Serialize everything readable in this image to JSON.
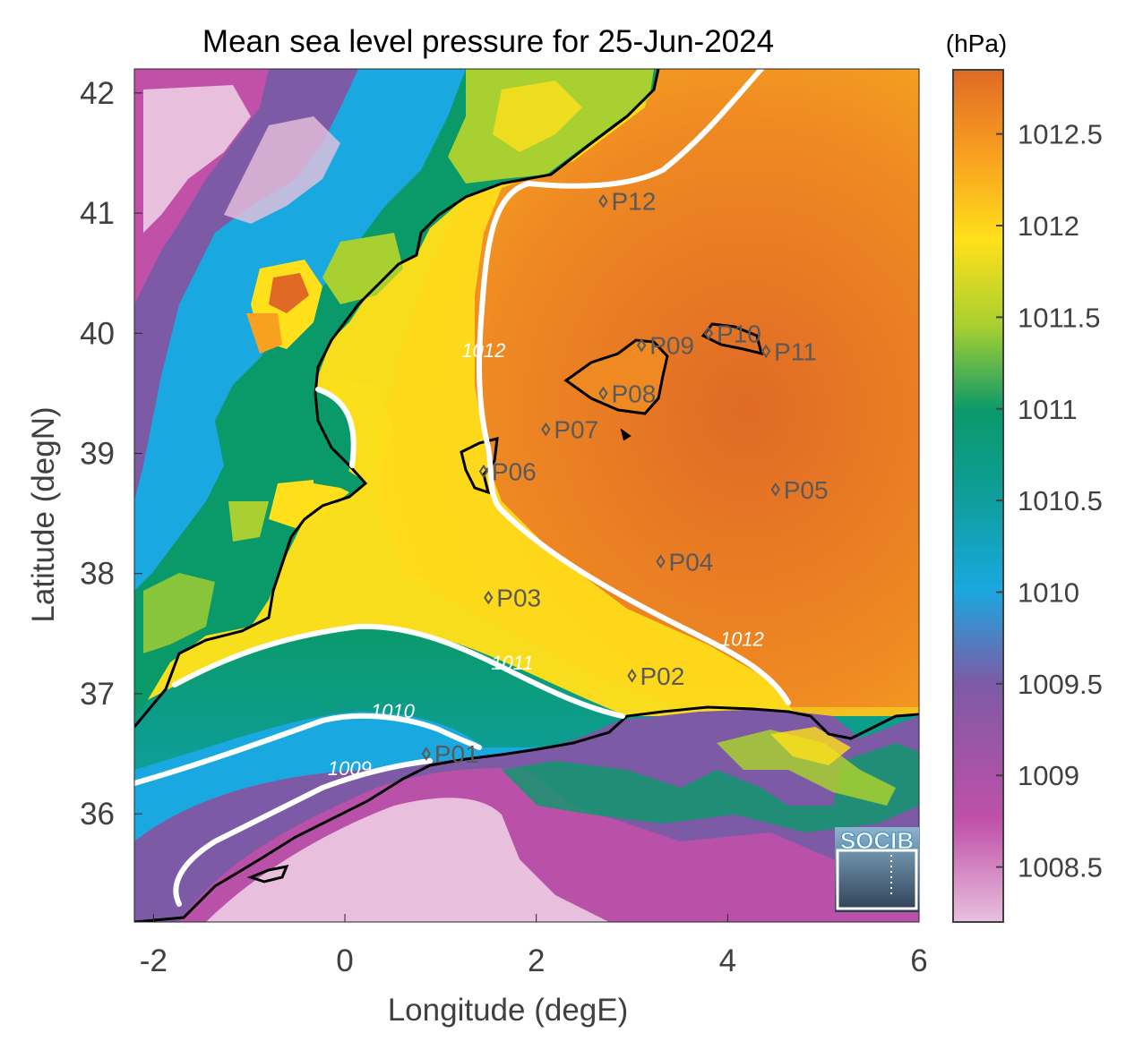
{
  "title": "Mean sea level pressure for 25-Jun-2024",
  "x_axis": {
    "label": "Longitude (degE)",
    "range": [
      -2.2,
      6.0
    ],
    "ticks": [
      {
        "value": -2,
        "label": "-2"
      },
      {
        "value": 0,
        "label": "0"
      },
      {
        "value": 2,
        "label": "2"
      },
      {
        "value": 4,
        "label": "4"
      },
      {
        "value": 6,
        "label": "6"
      }
    ]
  },
  "y_axis": {
    "label": "Latitude (degN)",
    "range": [
      35.1,
      42.2
    ],
    "ticks": [
      {
        "value": 36,
        "label": "36"
      },
      {
        "value": 37,
        "label": "37"
      },
      {
        "value": 38,
        "label": "38"
      },
      {
        "value": 39,
        "label": "39"
      },
      {
        "value": 40,
        "label": "40"
      },
      {
        "value": 41,
        "label": "41"
      },
      {
        "value": 42,
        "label": "42"
      }
    ]
  },
  "colorbar": {
    "unit": "(hPa)",
    "range": [
      1008.2,
      1012.85
    ],
    "ticks": [
      {
        "value": 1008.5,
        "label": "1008.5"
      },
      {
        "value": 1009,
        "label": "1009"
      },
      {
        "value": 1009.5,
        "label": "1009.5"
      },
      {
        "value": 1010,
        "label": "1010"
      },
      {
        "value": 1010.5,
        "label": "1010.5"
      },
      {
        "value": 1011,
        "label": "1011"
      },
      {
        "value": 1011.5,
        "label": "1011.5"
      },
      {
        "value": 1012,
        "label": "1012"
      },
      {
        "value": 1012.5,
        "label": "1012.5"
      }
    ],
    "colors": [
      "#e8c0dd",
      "#c050a8",
      "#7d5aa6",
      "#1aa8e0",
      "#0e9e9a",
      "#0a9a6a",
      "#a8d030",
      "#ffe01a",
      "#f8a020",
      "#e06a25"
    ]
  },
  "contour_labels": [
    {
      "value": "1012",
      "lon": 1.45,
      "lat": 39.8
    },
    {
      "value": "1012",
      "lon": 4.15,
      "lat": 37.4
    },
    {
      "value": "1011",
      "lon": 1.75,
      "lat": 37.2
    },
    {
      "value": "1010",
      "lon": 0.5,
      "lat": 36.8
    },
    {
      "value": "1009",
      "lon": 0.05,
      "lat": 36.32
    }
  ],
  "stations": [
    {
      "label": "P01",
      "lon": 0.85,
      "lat": 36.5
    },
    {
      "label": "P02",
      "lon": 3.0,
      "lat": 37.15
    },
    {
      "label": "P03",
      "lon": 1.5,
      "lat": 37.8
    },
    {
      "label": "P04",
      "lon": 3.3,
      "lat": 38.1
    },
    {
      "label": "P05",
      "lon": 4.5,
      "lat": 38.7
    },
    {
      "label": "P06",
      "lon": 1.45,
      "lat": 38.85
    },
    {
      "label": "P07",
      "lon": 2.1,
      "lat": 39.2
    },
    {
      "label": "P08",
      "lon": 2.7,
      "lat": 39.5
    },
    {
      "label": "P09",
      "lon": 3.1,
      "lat": 39.9
    },
    {
      "label": "P10",
      "lon": 3.8,
      "lat": 40.0
    },
    {
      "label": "P11",
      "lon": 4.4,
      "lat": 39.85
    },
    {
      "label": "P12",
      "lon": 2.7,
      "lat": 41.1
    }
  ],
  "logo": {
    "text": "SOCIB"
  }
}
